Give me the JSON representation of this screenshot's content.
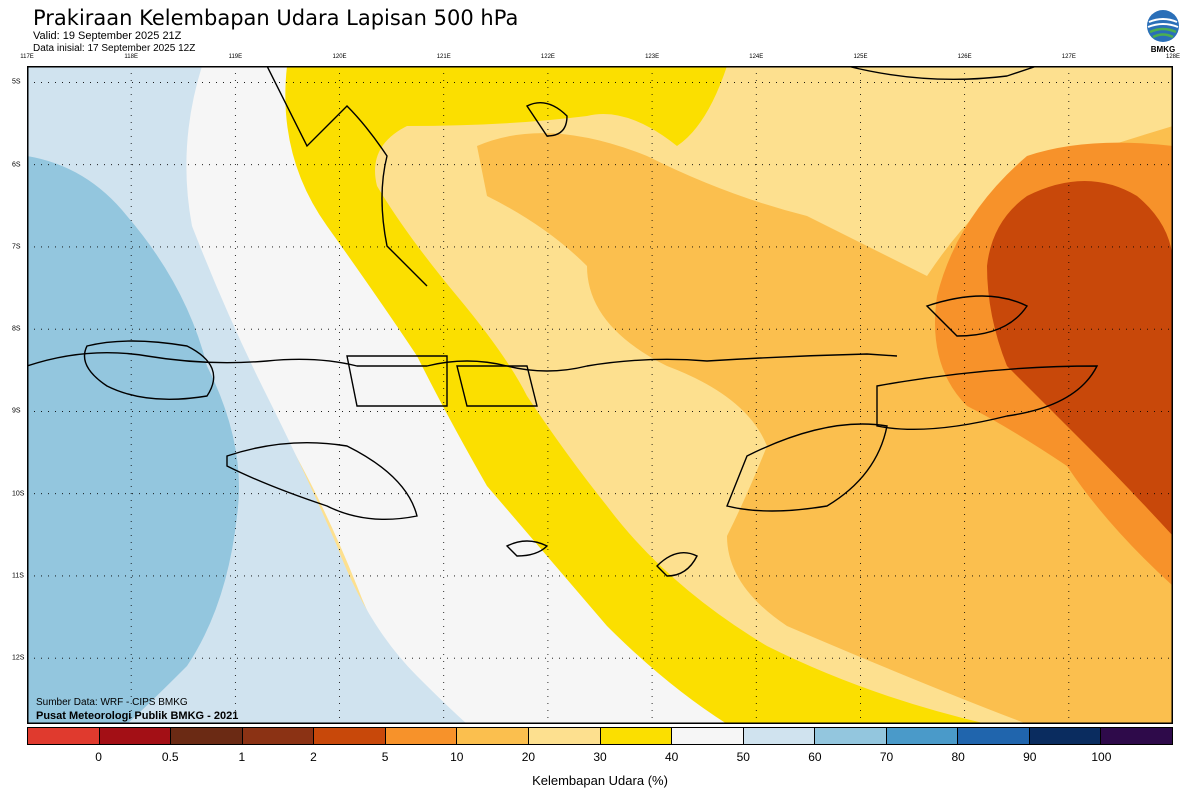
{
  "header": {
    "title": "Prakiraan Kelembapan Udara Lapisan 500 hPa",
    "valid": "Valid: 19 September 2025 21Z",
    "init": "Data inisial: 17 September 2025 12Z"
  },
  "logo": {
    "text": "BMKG",
    "icon": "bmkg-logo-icon"
  },
  "axes": {
    "lon_labels": [
      "117E",
      "118E",
      "119E",
      "120E",
      "121E",
      "122E",
      "123E",
      "124E",
      "125E",
      "126E",
      "127E",
      "128E"
    ],
    "lat_labels": [
      "5S",
      "6S",
      "7S",
      "8S",
      "9S",
      "10S",
      "11S",
      "12S"
    ],
    "lon_range": [
      117,
      128
    ],
    "lat_range": [
      -4.8,
      -12.8
    ],
    "grid": "dotted"
  },
  "footer": {
    "source": "Sumber Data: WRF - CIPS BMKG",
    "org": "Pusat Meteorologi Publik BMKG - 2021"
  },
  "colorbar": {
    "label": "Kelembapan Udara (%)",
    "colors": [
      "#e03a2e",
      "#a30f15",
      "#6b2a14",
      "#8b3214",
      "#c8480a",
      "#f7922a",
      "#fbbf4e",
      "#fde08f",
      "#fbdf00",
      "#f6f6f6",
      "#d0e3ef",
      "#93c6de",
      "#4a9ac9",
      "#2065ad",
      "#0a2c5f",
      "#2e0a4a"
    ],
    "ticks": [
      "0",
      "0.5",
      "1",
      "2",
      "5",
      "10",
      "20",
      "30",
      "40",
      "50",
      "60",
      "70",
      "80",
      "90",
      "100"
    ]
  }
}
